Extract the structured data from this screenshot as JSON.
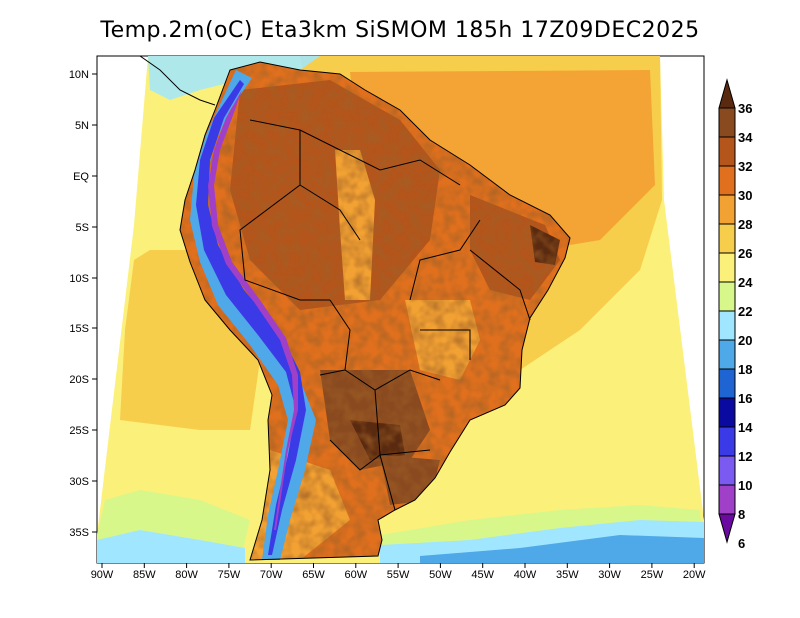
{
  "title": "Temp.2m(oC) Eta3km SiSMOM 185h 17Z09DEC2025",
  "lat_labels": [
    "10N",
    "5N",
    "EQ",
    "5S",
    "10S",
    "15S",
    "20S",
    "25S",
    "30S",
    "35S"
  ],
  "lon_labels": [
    "90W",
    "85W",
    "80W",
    "75W",
    "70W",
    "65W",
    "60W",
    "55W",
    "50W",
    "45W",
    "40W",
    "35W",
    "30W",
    "25W",
    "20W"
  ],
  "colorbar": {
    "labels": [
      "36",
      "34",
      "32",
      "30",
      "28",
      "26",
      "24",
      "22",
      "20",
      "18",
      "16",
      "14",
      "12",
      "10",
      "8",
      "6"
    ],
    "colors": [
      "#5a2a10",
      "#8a4a20",
      "#b4551c",
      "#e0701e",
      "#f2a133",
      "#f7cd4c",
      "#fbf07a",
      "#d8f78a",
      "#a0e6ff",
      "#4fa8e8",
      "#1e64d2",
      "#0a0aa0",
      "#3a3ae6",
      "#7a5af0",
      "#a040c8",
      "#6a0aa0"
    ]
  },
  "legend_values": {
    "min": 6,
    "max": 36,
    "step": 2,
    "unit": "oC"
  }
}
